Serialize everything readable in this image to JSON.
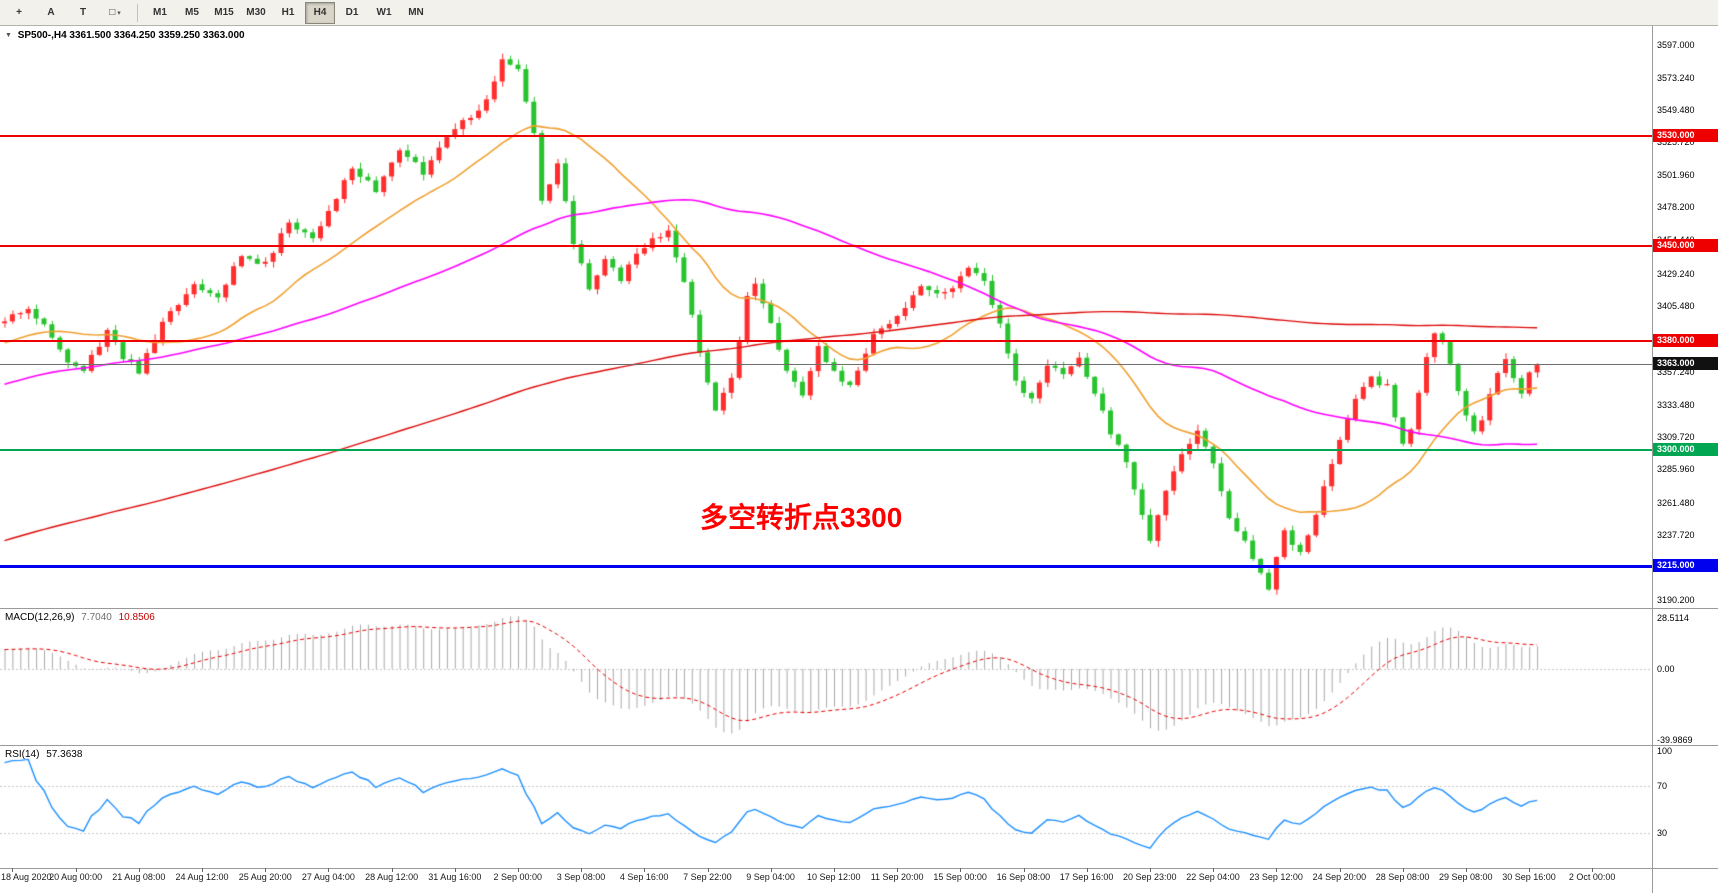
{
  "icons": {
    "one_click_toggle": "▼",
    "dropdown": "▾"
  },
  "toolbar": {
    "tools": [
      {
        "name": "crosshair-tool-button",
        "glyph": "+"
      },
      {
        "name": "text-tool-button",
        "glyph": "A"
      },
      {
        "name": "text-label-tool-button",
        "glyph": "T"
      },
      {
        "name": "shapes-tool-button",
        "glyph": "□",
        "dropdown": true
      }
    ],
    "timeframes": [
      {
        "label": "M1",
        "active": false
      },
      {
        "label": "M5",
        "active": false
      },
      {
        "label": "M15",
        "active": false
      },
      {
        "label": "M30",
        "active": false
      },
      {
        "label": "H1",
        "active": false
      },
      {
        "label": "H4",
        "active": true
      },
      {
        "label": "D1",
        "active": false
      },
      {
        "label": "W1",
        "active": false
      },
      {
        "label": "MN",
        "active": false
      }
    ]
  },
  "chart": {
    "title": "SP500-,H4",
    "ohlc": "3361.500 3364.250 3359.250 3363.000",
    "annotation": {
      "text": "多空转折点3300",
      "color": "#ff0000"
    },
    "price_axis": {
      "min": 3184.3,
      "max": 3611.0,
      "ticks": [
        "3597.000",
        "3573.240",
        "3549.480",
        "3525.720",
        "3501.960",
        "3478.200",
        "3454.440",
        "3429.240",
        "3405.480",
        "3381.720",
        "3357.240",
        "3333.480",
        "3309.720",
        "3285.960",
        "3261.480",
        "3237.720",
        "3213.960",
        "3190.200"
      ]
    },
    "levels": [
      {
        "value": 3530.0,
        "label": "3530.000",
        "color": "#ee0000",
        "width": 2,
        "user": true
      },
      {
        "value": 3450.0,
        "label": "3450.000",
        "color": "#ee0000",
        "width": 2,
        "user": true
      },
      {
        "value": 3380.0,
        "label": "3380.000",
        "color": "#ee0000",
        "width": 2,
        "user": true
      },
      {
        "value": 3363.0,
        "label": "3363.000",
        "color": "#6e6e6e",
        "badge": "#111111",
        "width": 1,
        "user": false
      },
      {
        "value": 3300.0,
        "label": "3300.000",
        "color": "#00a651",
        "width": 2,
        "user": true
      },
      {
        "value": 3215.0,
        "label": "3215.000",
        "color": "#0000ee",
        "width": 3,
        "user": true
      }
    ]
  },
  "macd": {
    "label": "MACD(12,26,9)",
    "value_main": "7.7040",
    "value_signal": "10.8506",
    "histogram_color": "#a9a9a9",
    "signal_color": "#e60000",
    "ticks": [
      {
        "value": 28.5114,
        "label": "28.5114"
      },
      {
        "value": 0,
        "label": "0.00"
      },
      {
        "value": -39.9869,
        "label": "-39.9869"
      }
    ]
  },
  "rsi": {
    "label": "RSI(14)",
    "value": "57.3638",
    "color": "#1e90ff",
    "levels": [
      70,
      30
    ],
    "ticks": [
      {
        "value": 100,
        "label": "100"
      },
      {
        "value": 70,
        "label": "70"
      },
      {
        "value": 30,
        "label": "30"
      }
    ]
  },
  "time_axis": {
    "labels": [
      "18 Aug 2020",
      "20 Aug 00:00",
      "21 Aug 08:00",
      "24 Aug 12:00",
      "25 Aug 20:00",
      "27 Aug 04:00",
      "28 Aug 12:00",
      "31 Aug 16:00",
      "2 Sep 00:00",
      "3 Sep 08:00",
      "4 Sep 16:00",
      "7 Sep 22:00",
      "9 Sep 04:00",
      "10 Sep 12:00",
      "11 Sep 20:00",
      "15 Sep 00:00",
      "16 Sep 08:00",
      "17 Sep 16:00",
      "20 Sep 23:00",
      "22 Sep 04:00",
      "23 Sep 12:00",
      "24 Sep 20:00",
      "28 Sep 08:00",
      "29 Sep 08:00",
      "30 Sep 16:00",
      "2 Oct 00:00"
    ]
  },
  "chart_data": {
    "type": "candlestick",
    "symbol": "SP500-",
    "period": "H4",
    "bars": 195,
    "seed": 11,
    "noise": 5,
    "up_color": "#ff2d2d",
    "down_color": "#28c32e",
    "moving_averages": [
      {
        "period": 20,
        "color": "#f0a030",
        "line_width": 1.6
      },
      {
        "period": 60,
        "color": "#ff00ff",
        "line_width": 1.6
      },
      {
        "period": 200,
        "color": "#dd0a0a",
        "line_width": 1.4
      }
    ],
    "history_anchors": [
      [
        -200,
        3065
      ],
      [
        -170,
        3110
      ],
      [
        -150,
        3145
      ],
      [
        -120,
        3205
      ],
      [
        -90,
        3255
      ],
      [
        -60,
        3305
      ],
      [
        -40,
        3332
      ],
      [
        -20,
        3362
      ],
      [
        -1,
        3392
      ]
    ],
    "close_anchors": [
      [
        0,
        3395
      ],
      [
        3,
        3405
      ],
      [
        6,
        3385
      ],
      [
        8,
        3362
      ],
      [
        10,
        3358
      ],
      [
        13,
        3388
      ],
      [
        15,
        3368
      ],
      [
        17,
        3358
      ],
      [
        20,
        3392
      ],
      [
        24,
        3422
      ],
      [
        27,
        3414
      ],
      [
        30,
        3442
      ],
      [
        33,
        3436
      ],
      [
        36,
        3468
      ],
      [
        39,
        3456
      ],
      [
        44,
        3506
      ],
      [
        47,
        3490
      ],
      [
        50,
        3521
      ],
      [
        53,
        3503
      ],
      [
        56,
        3532
      ],
      [
        59,
        3546
      ],
      [
        61,
        3556
      ],
      [
        63,
        3588
      ],
      [
        65,
        3578
      ],
      [
        67,
        3532
      ],
      [
        68,
        3482
      ],
      [
        70,
        3509
      ],
      [
        72,
        3452
      ],
      [
        74,
        3420
      ],
      [
        76,
        3440
      ],
      [
        78,
        3426
      ],
      [
        81,
        3450
      ],
      [
        84,
        3460
      ],
      [
        86,
        3422
      ],
      [
        88,
        3372
      ],
      [
        90,
        3330
      ],
      [
        92,
        3352
      ],
      [
        94,
        3412
      ],
      [
        95,
        3424
      ],
      [
        97,
        3392
      ],
      [
        99,
        3356
      ],
      [
        101,
        3342
      ],
      [
        103,
        3378
      ],
      [
        105,
        3356
      ],
      [
        107,
        3347
      ],
      [
        110,
        3384
      ],
      [
        113,
        3396
      ],
      [
        116,
        3420
      ],
      [
        119,
        3414
      ],
      [
        122,
        3434
      ],
      [
        124,
        3424
      ],
      [
        126,
        3392
      ],
      [
        128,
        3352
      ],
      [
        130,
        3336
      ],
      [
        132,
        3364
      ],
      [
        134,
        3356
      ],
      [
        136,
        3370
      ],
      [
        138,
        3342
      ],
      [
        140,
        3312
      ],
      [
        142,
        3292
      ],
      [
        144,
        3252
      ],
      [
        145,
        3236
      ],
      [
        147,
        3270
      ],
      [
        149,
        3296
      ],
      [
        151,
        3312
      ],
      [
        153,
        3292
      ],
      [
        155,
        3252
      ],
      [
        157,
        3232
      ],
      [
        159,
        3212
      ],
      [
        160,
        3200
      ],
      [
        162,
        3240
      ],
      [
        164,
        3226
      ],
      [
        166,
        3254
      ],
      [
        168,
        3290
      ],
      [
        169,
        3310
      ],
      [
        171,
        3340
      ],
      [
        173,
        3354
      ],
      [
        175,
        3346
      ],
      [
        176,
        3322
      ],
      [
        177,
        3306
      ],
      [
        178,
        3316
      ],
      [
        179,
        3344
      ],
      [
        180,
        3370
      ],
      [
        181,
        3388
      ],
      [
        182,
        3380
      ],
      [
        183,
        3362
      ],
      [
        184,
        3342
      ],
      [
        185,
        3326
      ],
      [
        186,
        3312
      ],
      [
        187,
        3322
      ],
      [
        188,
        3342
      ],
      [
        189,
        3356
      ],
      [
        190,
        3366
      ],
      [
        191,
        3352
      ],
      [
        192,
        3342
      ],
      [
        193,
        3356
      ],
      [
        194,
        3363
      ]
    ]
  }
}
